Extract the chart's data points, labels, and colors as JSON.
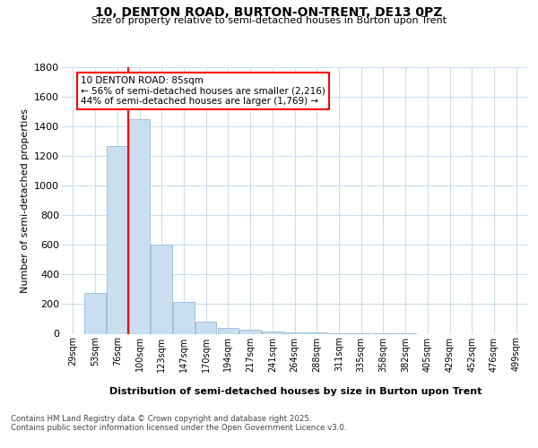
{
  "title": "10, DENTON ROAD, BURTON-ON-TRENT, DE13 0PZ",
  "subtitle": "Size of property relative to semi-detached houses in Burton upon Trent",
  "xlabel": "Distribution of semi-detached houses by size in Burton upon Trent",
  "ylabel": "Number of semi-detached properties",
  "categories": [
    "29sqm",
    "53sqm",
    "76sqm",
    "100sqm",
    "123sqm",
    "147sqm",
    "170sqm",
    "194sqm",
    "217sqm",
    "241sqm",
    "264sqm",
    "288sqm",
    "311sqm",
    "335sqm",
    "358sqm",
    "382sqm",
    "405sqm",
    "429sqm",
    "452sqm",
    "476sqm",
    "499sqm"
  ],
  "values": [
    0,
    275,
    1265,
    1450,
    600,
    215,
    80,
    40,
    25,
    15,
    10,
    8,
    5,
    2,
    1,
    1,
    0,
    0,
    0,
    0,
    0
  ],
  "bar_color": "#c9dff0",
  "bar_edge_color": "#a0c0e0",
  "red_line_index": 2,
  "annotation_title": "10 DENTON ROAD: 85sqm",
  "annotation_line1": "← 56% of semi-detached houses are smaller (2,216)",
  "annotation_line2": "44% of semi-detached houses are larger (1,769) →",
  "footer1": "Contains HM Land Registry data © Crown copyright and database right 2025.",
  "footer2": "Contains public sector information licensed under the Open Government Licence v3.0.",
  "ylim": [
    0,
    1800
  ],
  "background_color": "#ffffff",
  "grid_color": "#ccddee"
}
